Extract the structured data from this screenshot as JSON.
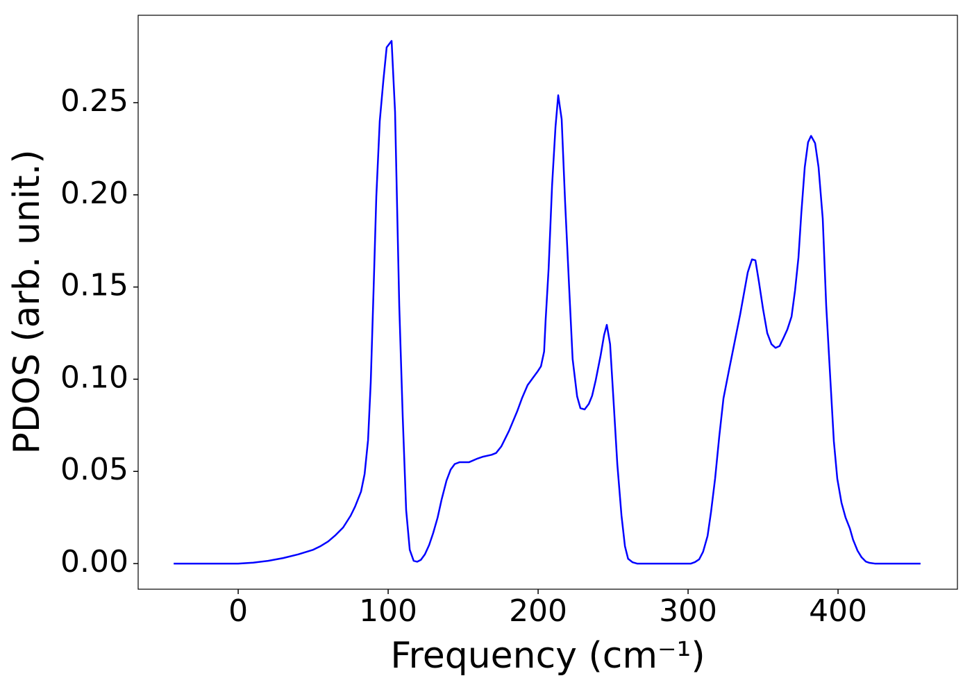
{
  "chart_data": {
    "type": "line",
    "x_label": "Frequency (cm⁻¹)",
    "y_label": "PDOS (arb. unit.)",
    "xlim": [
      -66.7,
      479.6
    ],
    "ylim": [
      -0.0139,
      0.2974
    ],
    "xticks": [
      0,
      100,
      200,
      300,
      400
    ],
    "yticks": [
      {
        "value": 0,
        "label": "0.00"
      },
      {
        "value": 0.05,
        "label": "0.05"
      },
      {
        "value": 0.1,
        "label": "0.10"
      },
      {
        "value": 0.15,
        "label": "0.15"
      },
      {
        "value": 0.2,
        "label": "0.20"
      },
      {
        "value": 0.25,
        "label": "0.25"
      }
    ],
    "grid": false,
    "series": [
      {
        "color": "#0000ff",
        "x": [
          -43,
          -20,
          0,
          10,
          20,
          30,
          40,
          50,
          55,
          60,
          65,
          70,
          75,
          78,
          81.9,
          84.3,
          86.6,
          88.4,
          90.3,
          92.1,
          94.4,
          96.8,
          99,
          102.3,
          104.6,
          107.4,
          109.7,
          112,
          114.4,
          117,
          119.4,
          121.8,
          124.5,
          127.3,
          130,
          133,
          135.6,
          138.9,
          141.7,
          144.4,
          147.7,
          154,
          159.7,
          163.4,
          169,
          172,
          175.5,
          180.6,
          186,
          189.4,
          193,
          196.3,
          199.5,
          201.9,
          204,
          205,
          207,
          209.3,
          211.6,
          213.4,
          215.7,
          218,
          220.8,
          223,
          226,
          228.2,
          231,
          233.8,
          236,
          238.4,
          241.7,
          244,
          245.8,
          248,
          250.5,
          252.8,
          255.6,
          257.9,
          260,
          263,
          266,
          301.9,
          304.6,
          307.4,
          310,
          313,
          315.3,
          318,
          320.8,
          323.6,
          327.3,
          331,
          334.7,
          339.8,
          342.6,
          344.9,
          347.2,
          350,
          352.8,
          355.6,
          358.3,
          361,
          363.4,
          366.2,
          369,
          371.3,
          373.6,
          375.5,
          377.8,
          380,
          382,
          384.7,
          387,
          389.8,
          392.1,
          394.9,
          397.2,
          399.5,
          402.3,
          405,
          407.9,
          410,
          413,
          415.7,
          418.5,
          421,
          424.5,
          455
        ],
        "values": [
          0,
          0,
          0,
          0.0005,
          0.0015,
          0.003,
          0.005,
          0.0075,
          0.0095,
          0.012,
          0.0155,
          0.0196,
          0.026,
          0.031,
          0.039,
          0.0486,
          0.067,
          0.0986,
          0.149,
          0.199,
          0.24,
          0.262,
          0.28,
          0.2835,
          0.245,
          0.14,
          0.08,
          0.029,
          0.0075,
          0.0015,
          0.001,
          0.002,
          0.005,
          0.01,
          0.0165,
          0.025,
          0.0346,
          0.045,
          0.051,
          0.054,
          0.055,
          0.055,
          0.057,
          0.058,
          0.059,
          0.06,
          0.0636,
          0.072,
          0.0825,
          0.09,
          0.0968,
          0.1005,
          0.104,
          0.107,
          0.115,
          0.132,
          0.16,
          0.205,
          0.237,
          0.254,
          0.241,
          0.196,
          0.148,
          0.111,
          0.0907,
          0.0843,
          0.0836,
          0.0866,
          0.091,
          0.0994,
          0.113,
          0.124,
          0.1295,
          0.119,
          0.0855,
          0.054,
          0.026,
          0.0094,
          0.0026,
          0.0007,
          0,
          0,
          0.0008,
          0.0023,
          0.0064,
          0.015,
          0.028,
          0.046,
          0.069,
          0.0896,
          0.105,
          0.12,
          0.135,
          0.158,
          0.165,
          0.1645,
          0.153,
          0.138,
          0.125,
          0.119,
          0.117,
          0.118,
          0.122,
          0.127,
          0.134,
          0.148,
          0.166,
          0.19,
          0.215,
          0.2285,
          0.232,
          0.228,
          0.215,
          0.187,
          0.14,
          0.0994,
          0.0663,
          0.046,
          0.033,
          0.025,
          0.019,
          0.013,
          0.007,
          0.0034,
          0.0011,
          0.0004,
          0,
          0
        ]
      }
    ]
  }
}
